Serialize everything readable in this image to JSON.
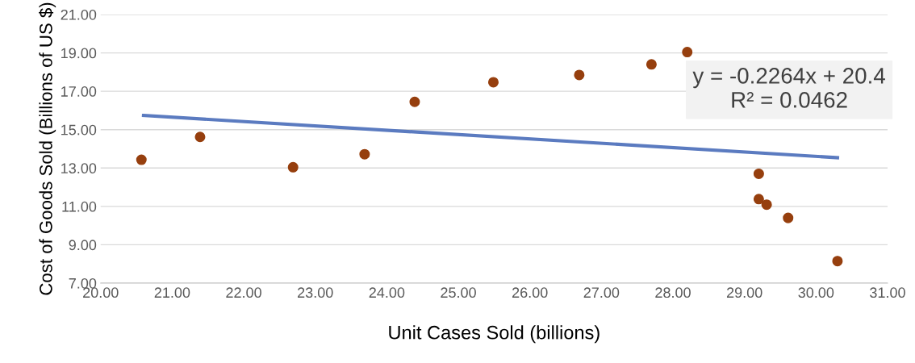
{
  "chart_data": {
    "type": "scatter",
    "xlabel": "Unit Cases Sold (billions)",
    "ylabel": "Cost of Goods Sold (Billions of US $)",
    "x": [
      20.57,
      21.39,
      22.69,
      23.69,
      24.39,
      25.49,
      26.69,
      27.7,
      28.2,
      29.2,
      29.2,
      29.31,
      29.61,
      30.3
    ],
    "series": [
      {
        "type": "scatter",
        "color": "#963f0e",
        "marker": "circle",
        "values": [
          13.43,
          14.62,
          13.04,
          13.72,
          16.45,
          17.47,
          17.85,
          18.4,
          19.04,
          12.7,
          11.38,
          11.09,
          10.4,
          8.15
        ]
      },
      {
        "type": "line",
        "color": "#5b7bc0",
        "line_style": "solid",
        "marker": "none",
        "x": [
          20.6,
          30.3
        ],
        "values": [
          15.74,
          13.54
        ]
      }
    ],
    "xlim": [
      20,
      31
    ],
    "ylim": [
      7,
      21
    ],
    "xticks": [
      {
        "value": 20,
        "label": "20.00"
      },
      {
        "value": 21,
        "label": "21.00"
      },
      {
        "value": 22,
        "label": "22.00"
      },
      {
        "value": 23,
        "label": "23.00"
      },
      {
        "value": 24,
        "label": "24.00"
      },
      {
        "value": 25,
        "label": "25.00"
      },
      {
        "value": 26,
        "label": "26.00"
      },
      {
        "value": 27,
        "label": "27.00"
      },
      {
        "value": 28,
        "label": "28.00"
      },
      {
        "value": 29,
        "label": "29.00"
      },
      {
        "value": 30,
        "label": "30.00"
      },
      {
        "value": 31,
        "label": "31.00"
      }
    ],
    "yticks": [
      {
        "value": 7,
        "label": "7.00"
      },
      {
        "value": 9,
        "label": "9.00"
      },
      {
        "value": 11,
        "label": "11.00"
      },
      {
        "value": 13,
        "label": "13.00"
      },
      {
        "value": 15,
        "label": "15.00"
      },
      {
        "value": 17,
        "label": "17.00"
      },
      {
        "value": 19,
        "label": "19.00"
      },
      {
        "value": 21,
        "label": "21.00"
      }
    ],
    "grid": "y",
    "legend": false,
    "annotations": [
      "y = -0.2264x + 20.4\nR² = 0.0462"
    ]
  }
}
